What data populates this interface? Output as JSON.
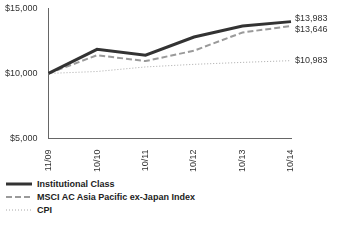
{
  "chart_data": {
    "type": "line",
    "categories": [
      "11/09",
      "10/10",
      "10/11",
      "10/12",
      "10/13",
      "10/14"
    ],
    "series": [
      {
        "name": "Institutional Class",
        "color": "#333333",
        "line_style": "solid",
        "values": [
          10000,
          11850,
          11400,
          12800,
          13650,
          13983
        ],
        "value_labels": [
          null,
          null,
          null,
          null,
          null,
          "$13,983"
        ]
      },
      {
        "name": "MSCI AC Asia Pacific ex-Japan Index",
        "color": "#9a9a9a",
        "line_style": "dashed",
        "values": [
          10000,
          11400,
          10950,
          11750,
          13150,
          13646
        ],
        "value_labels": [
          null,
          null,
          null,
          null,
          null,
          "$13,646"
        ]
      },
      {
        "name": "CPI",
        "color": "#a8a8a8",
        "line_style": "dotted",
        "values": [
          10000,
          10150,
          10500,
          10700,
          10850,
          10983
        ],
        "value_labels": [
          null,
          null,
          null,
          null,
          null,
          "$10,983"
        ]
      }
    ],
    "ylim": [
      5000,
      15000
    ],
    "yticks": [
      {
        "value": 5000,
        "label": "$5,000"
      },
      {
        "value": 10000,
        "label": "$10,000"
      },
      {
        "value": 15000,
        "label": "$15,000"
      }
    ],
    "grid": false,
    "legend": "bottom",
    "data_labels": true
  }
}
